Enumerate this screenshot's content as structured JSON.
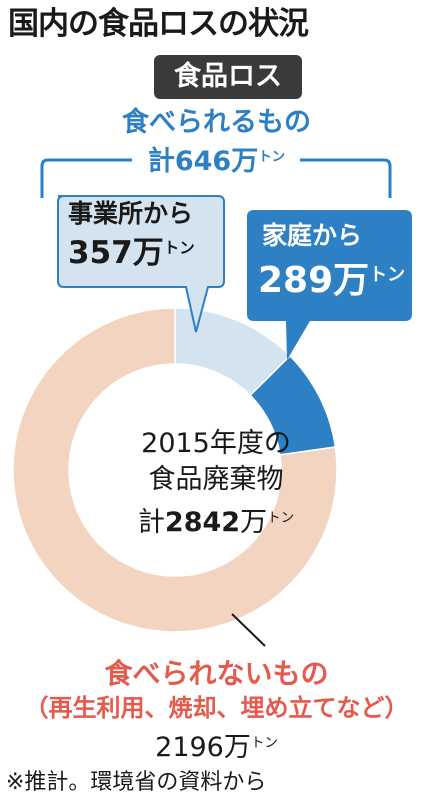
{
  "title": "国内の食品ロスの状況",
  "tag_label": "食品ロス",
  "edible": {
    "label": "食べられるもの",
    "total_prefix": "計",
    "total": "646",
    "unit_main": "万",
    "unit_small": "トン"
  },
  "business": {
    "label": "事業所から",
    "value": "357"
  },
  "household": {
    "label": "家庭から",
    "value": "289"
  },
  "center": {
    "line1": "2015年度の",
    "line2": "食品廃棄物",
    "line3_prefix": "計",
    "line3_value": "2842"
  },
  "inedible": {
    "label": "食べられないもの",
    "detail": "（再生利用、焼却、埋め立てなど）",
    "value": "2196"
  },
  "source": "※推計。環境省の資料から",
  "colors": {
    "business": "#d4e3f0",
    "household": "#2d80c4",
    "inedible": "#f3d4c0",
    "edible_text": "#2d80c4",
    "inedible_text": "#e55a4c",
    "tag_bg": "#3a3a3a"
  },
  "chart_data": {
    "type": "pie",
    "title": "国内の食品ロスの状況",
    "center_label": "2015年度の食品廃棄物 計2842万トン",
    "unit": "万トン",
    "slices": [
      {
        "label": "事業所から",
        "value": 357
      },
      {
        "label": "家庭から",
        "value": 289
      },
      {
        "label": "食べられないもの（再生利用、焼却、埋め立てなど）",
        "value": 2196
      }
    ],
    "total": 2842
  }
}
